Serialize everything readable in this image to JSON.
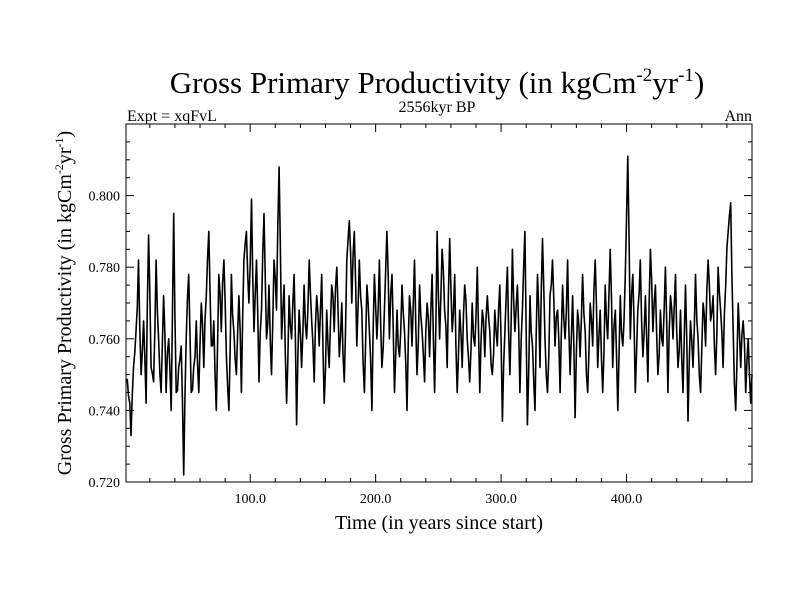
{
  "chart_data": {
    "type": "line",
    "title": {
      "main": "Gross Primary Productivity (in kgCm",
      "sup1": "-2",
      "mid": "yr",
      "sup2": "-1",
      "end": ")"
    },
    "subtitle_left": "Expt = xqFvL",
    "subtitle_center": "2556kyr BP",
    "subtitle_right": "Ann",
    "xlabel": "Time (in years since start)",
    "ylabel": {
      "main": "Gross Primary Productivity (in kgCm",
      "sup1": "-2",
      "mid": "yr",
      "sup2": "-1",
      "end": ")"
    },
    "xlim": [
      1,
      500
    ],
    "ylim": [
      0.72,
      0.82
    ],
    "xticks": [
      {
        "value": 100,
        "label": "100.0"
      },
      {
        "value": 200,
        "label": "200.0"
      },
      {
        "value": 300,
        "label": "300.0"
      },
      {
        "value": 400,
        "label": "400.0"
      }
    ],
    "yticks": [
      {
        "value": 0.72,
        "label": "0.720"
      },
      {
        "value": 0.74,
        "label": "0.740"
      },
      {
        "value": 0.76,
        "label": "0.760"
      },
      {
        "value": 0.78,
        "label": "0.780"
      },
      {
        "value": 0.8,
        "label": "0.800"
      }
    ],
    "series": [
      {
        "name": "Gross Primary Productivity",
        "anchors": [
          [
            1,
            0.748
          ],
          [
            3,
            0.744
          ],
          [
            5,
            0.733
          ],
          [
            7,
            0.752
          ],
          [
            9,
            0.762
          ],
          [
            11,
            0.782
          ],
          [
            13,
            0.75
          ],
          [
            15,
            0.765
          ],
          [
            17,
            0.742
          ],
          [
            19,
            0.789
          ],
          [
            21,
            0.752
          ],
          [
            23,
            0.748
          ],
          [
            25,
            0.782
          ],
          [
            27,
            0.76
          ],
          [
            29,
            0.745
          ],
          [
            31,
            0.772
          ],
          [
            33,
            0.745
          ],
          [
            35,
            0.76
          ],
          [
            37,
            0.74
          ],
          [
            39,
            0.795
          ],
          [
            41,
            0.745
          ],
          [
            43,
            0.752
          ],
          [
            45,
            0.758
          ],
          [
            47,
            0.722
          ],
          [
            49,
            0.76
          ],
          [
            51,
            0.778
          ],
          [
            53,
            0.745
          ],
          [
            55,
            0.752
          ],
          [
            57,
            0.765
          ],
          [
            59,
            0.745
          ],
          [
            61,
            0.77
          ],
          [
            63,
            0.752
          ],
          [
            65,
            0.772
          ],
          [
            67,
            0.79
          ],
          [
            69,
            0.758
          ],
          [
            71,
            0.765
          ],
          [
            73,
            0.74
          ],
          [
            75,
            0.778
          ],
          [
            77,
            0.762
          ],
          [
            79,
            0.782
          ],
          [
            81,
            0.755
          ],
          [
            83,
            0.74
          ],
          [
            85,
            0.778
          ],
          [
            87,
            0.762
          ],
          [
            89,
            0.75
          ],
          [
            91,
            0.772
          ],
          [
            93,
            0.745
          ],
          [
            95,
            0.782
          ],
          [
            97,
            0.79
          ],
          [
            99,
            0.77
          ],
          [
            101,
            0.799
          ],
          [
            103,
            0.762
          ],
          [
            105,
            0.782
          ],
          [
            107,
            0.748
          ],
          [
            109,
            0.768
          ],
          [
            111,
            0.795
          ],
          [
            113,
            0.76
          ],
          [
            115,
            0.775
          ],
          [
            117,
            0.75
          ],
          [
            119,
            0.782
          ],
          [
            121,
            0.768
          ],
          [
            123,
            0.808
          ],
          [
            125,
            0.76
          ],
          [
            127,
            0.775
          ],
          [
            129,
            0.742
          ],
          [
            131,
            0.772
          ],
          [
            133,
            0.76
          ],
          [
            135,
            0.778
          ],
          [
            137,
            0.736
          ],
          [
            139,
            0.768
          ],
          [
            141,
            0.752
          ],
          [
            143,
            0.775
          ],
          [
            145,
            0.76
          ],
          [
            147,
            0.782
          ],
          [
            149,
            0.765
          ],
          [
            151,
            0.748
          ],
          [
            153,
            0.772
          ],
          [
            155,
            0.758
          ],
          [
            157,
            0.778
          ],
          [
            159,
            0.742
          ],
          [
            161,
            0.768
          ],
          [
            163,
            0.752
          ],
          [
            165,
            0.775
          ],
          [
            167,
            0.762
          ],
          [
            169,
            0.78
          ],
          [
            171,
            0.755
          ],
          [
            173,
            0.77
          ],
          [
            175,
            0.748
          ],
          [
            177,
            0.782
          ],
          [
            179,
            0.793
          ],
          [
            181,
            0.77
          ],
          [
            183,
            0.79
          ],
          [
            185,
            0.758
          ],
          [
            187,
            0.782
          ],
          [
            189,
            0.768
          ],
          [
            191,
            0.745
          ],
          [
            193,
            0.775
          ],
          [
            195,
            0.762
          ],
          [
            197,
            0.74
          ],
          [
            199,
            0.778
          ],
          [
            201,
            0.76
          ],
          [
            203,
            0.782
          ],
          [
            205,
            0.752
          ],
          [
            207,
            0.768
          ],
          [
            209,
            0.79
          ],
          [
            211,
            0.76
          ],
          [
            213,
            0.778
          ],
          [
            215,
            0.745
          ],
          [
            217,
            0.768
          ],
          [
            219,
            0.755
          ],
          [
            221,
            0.775
          ],
          [
            223,
            0.762
          ],
          [
            225,
            0.74
          ],
          [
            227,
            0.772
          ],
          [
            229,
            0.758
          ],
          [
            231,
            0.782
          ],
          [
            233,
            0.75
          ],
          [
            235,
            0.775
          ],
          [
            237,
            0.762
          ],
          [
            239,
            0.748
          ],
          [
            241,
            0.77
          ],
          [
            243,
            0.755
          ],
          [
            245,
            0.778
          ],
          [
            247,
            0.745
          ],
          [
            249,
            0.79
          ],
          [
            251,
            0.76
          ],
          [
            253,
            0.785
          ],
          [
            255,
            0.768
          ],
          [
            257,
            0.752
          ],
          [
            259,
            0.788
          ],
          [
            261,
            0.762
          ],
          [
            263,
            0.778
          ],
          [
            265,
            0.745
          ],
          [
            267,
            0.768
          ],
          [
            269,
            0.752
          ],
          [
            271,
            0.775
          ],
          [
            273,
            0.76
          ],
          [
            275,
            0.748
          ],
          [
            277,
            0.77
          ],
          [
            279,
            0.758
          ],
          [
            281,
            0.78
          ],
          [
            283,
            0.745
          ],
          [
            285,
            0.768
          ],
          [
            287,
            0.755
          ],
          [
            289,
            0.772
          ],
          [
            291,
            0.762
          ],
          [
            293,
            0.75
          ],
          [
            295,
            0.768
          ],
          [
            297,
            0.758
          ],
          [
            299,
            0.775
          ],
          [
            301,
            0.737
          ],
          [
            303,
            0.762
          ],
          [
            305,
            0.78
          ],
          [
            307,
            0.75
          ],
          [
            309,
            0.785
          ],
          [
            311,
            0.762
          ],
          [
            313,
            0.775
          ],
          [
            315,
            0.745
          ],
          [
            317,
            0.768
          ],
          [
            319,
            0.79
          ],
          [
            321,
            0.736
          ],
          [
            323,
            0.772
          ],
          [
            325,
            0.758
          ],
          [
            327,
            0.74
          ],
          [
            329,
            0.778
          ],
          [
            331,
            0.752
          ],
          [
            333,
            0.788
          ],
          [
            335,
            0.76
          ],
          [
            337,
            0.745
          ],
          [
            339,
            0.772
          ],
          [
            341,
            0.782
          ],
          [
            343,
            0.758
          ],
          [
            345,
            0.768
          ],
          [
            347,
            0.745
          ],
          [
            349,
            0.775
          ],
          [
            351,
            0.76
          ],
          [
            353,
            0.782
          ],
          [
            355,
            0.75
          ],
          [
            357,
            0.772
          ],
          [
            359,
            0.738
          ],
          [
            361,
            0.768
          ],
          [
            363,
            0.755
          ],
          [
            365,
            0.778
          ],
          [
            367,
            0.762
          ],
          [
            369,
            0.745
          ],
          [
            371,
            0.77
          ],
          [
            373,
            0.758
          ],
          [
            375,
            0.782
          ],
          [
            377,
            0.752
          ],
          [
            379,
            0.768
          ],
          [
            381,
            0.745
          ],
          [
            383,
            0.775
          ],
          [
            385,
            0.76
          ],
          [
            387,
            0.785
          ],
          [
            389,
            0.752
          ],
          [
            391,
            0.768
          ],
          [
            393,
            0.74
          ],
          [
            395,
            0.772
          ],
          [
            397,
            0.758
          ],
          [
            399,
            0.778
          ],
          [
            401,
            0.811
          ],
          [
            403,
            0.76
          ],
          [
            405,
            0.778
          ],
          [
            407,
            0.745
          ],
          [
            409,
            0.768
          ],
          [
            411,
            0.782
          ],
          [
            413,
            0.755
          ],
          [
            415,
            0.772
          ],
          [
            417,
            0.748
          ],
          [
            419,
            0.785
          ],
          [
            421,
            0.762
          ],
          [
            423,
            0.775
          ],
          [
            425,
            0.75
          ],
          [
            427,
            0.768
          ],
          [
            429,
            0.758
          ],
          [
            431,
            0.78
          ],
          [
            433,
            0.745
          ],
          [
            435,
            0.772
          ],
          [
            437,
            0.76
          ],
          [
            439,
            0.778
          ],
          [
            441,
            0.752
          ],
          [
            443,
            0.768
          ],
          [
            445,
            0.745
          ],
          [
            447,
            0.775
          ],
          [
            449,
            0.737
          ],
          [
            451,
            0.765
          ],
          [
            453,
            0.752
          ],
          [
            455,
            0.778
          ],
          [
            457,
            0.76
          ],
          [
            459,
            0.745
          ],
          [
            461,
            0.77
          ],
          [
            463,
            0.758
          ],
          [
            465,
            0.782
          ],
          [
            467,
            0.765
          ],
          [
            469,
            0.772
          ],
          [
            471,
            0.75
          ],
          [
            473,
            0.78
          ],
          [
            475,
            0.768
          ],
          [
            477,
            0.752
          ],
          [
            479,
            0.775
          ],
          [
            481,
            0.79
          ],
          [
            483,
            0.798
          ],
          [
            485,
            0.762
          ],
          [
            487,
            0.74
          ],
          [
            489,
            0.77
          ],
          [
            491,
            0.752
          ],
          [
            493,
            0.765
          ],
          [
            495,
            0.745
          ],
          [
            497,
            0.76
          ],
          [
            499,
            0.742
          ],
          [
            500,
            0.75
          ]
        ]
      }
    ]
  }
}
